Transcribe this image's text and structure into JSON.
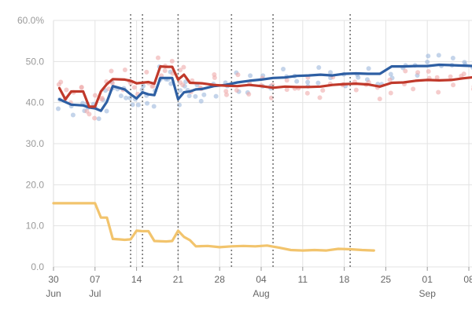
{
  "chart_data": {
    "type": "line",
    "title": "",
    "xlabel": "",
    "ylabel": "",
    "x_range": [
      "2019-06-30",
      "2019-09-08"
    ],
    "ylim": [
      0,
      60
    ],
    "y_ticks": [
      0,
      10,
      20,
      30,
      40,
      50,
      60
    ],
    "y_tick_labels": [
      "0.0",
      "10.0",
      "20.0",
      "30.0",
      "40.0",
      "50.0",
      "60.0%"
    ],
    "x_ticks": [
      {
        "date": "2019-06-30",
        "day": "30",
        "month": "Jun"
      },
      {
        "date": "2019-07-07",
        "day": "07",
        "month": "Jul"
      },
      {
        "date": "2019-07-14",
        "day": "14",
        "month": ""
      },
      {
        "date": "2019-07-21",
        "day": "21",
        "month": ""
      },
      {
        "date": "2019-07-28",
        "day": "28",
        "month": ""
      },
      {
        "date": "2019-08-04",
        "day": "04",
        "month": "Aug"
      },
      {
        "date": "2019-08-11",
        "day": "11",
        "month": ""
      },
      {
        "date": "2019-08-18",
        "day": "18",
        "month": ""
      },
      {
        "date": "2019-08-25",
        "day": "25",
        "month": ""
      },
      {
        "date": "2019-09-01",
        "day": "01",
        "month": "Sep"
      },
      {
        "date": "2019-09-08",
        "day": "08",
        "month": ""
      }
    ],
    "grid": true,
    "event_dates": [
      "2019-07-13",
      "2019-07-15",
      "2019-07-21",
      "2019-07-30",
      "2019-08-06",
      "2019-08-19"
    ],
    "series": [
      {
        "color": "#2e5fa3",
        "dot_color": "#9db8dc",
        "x": [
          "2019-07-01",
          "2019-07-03",
          "2019-07-05",
          "2019-07-06",
          "2019-07-07",
          "2019-07-08",
          "2019-07-09",
          "2019-07-10",
          "2019-07-11",
          "2019-07-12",
          "2019-07-13",
          "2019-07-14",
          "2019-07-15",
          "2019-07-16",
          "2019-07-17",
          "2019-07-18",
          "2019-07-19",
          "2019-07-20",
          "2019-07-21",
          "2019-07-22",
          "2019-07-23",
          "2019-07-24",
          "2019-07-25",
          "2019-07-27",
          "2019-07-29",
          "2019-07-31",
          "2019-08-02",
          "2019-08-04",
          "2019-08-06",
          "2019-08-08",
          "2019-08-10",
          "2019-08-12",
          "2019-08-14",
          "2019-08-16",
          "2019-08-18",
          "2019-08-20",
          "2019-08-22",
          "2019-08-24",
          "2019-08-26",
          "2019-08-28",
          "2019-08-30",
          "2019-09-01",
          "2019-09-03",
          "2019-09-05",
          "2019-09-07",
          "2019-09-09"
        ],
        "values": [
          40.8,
          39.5,
          39.3,
          38.8,
          38.6,
          38.0,
          40.2,
          44.0,
          43.6,
          43.2,
          42.0,
          41.0,
          42.5,
          42.0,
          41.8,
          46.0,
          46.0,
          46.0,
          40.8,
          42.5,
          42.7,
          43.2,
          43.3,
          44.0,
          44.3,
          44.9,
          45.3,
          45.6,
          46.0,
          46.1,
          46.5,
          46.6,
          46.8,
          46.6,
          47.0,
          47.1,
          47.0,
          47.0,
          48.8,
          48.8,
          48.9,
          48.9,
          49.2,
          49.1,
          49.0,
          48.9
        ]
      },
      {
        "color": "#c0392b",
        "dot_color": "#eeaaaa",
        "x": [
          "2019-07-01",
          "2019-07-02",
          "2019-07-03",
          "2019-07-05",
          "2019-07-06",
          "2019-07-07",
          "2019-07-08",
          "2019-07-09",
          "2019-07-10",
          "2019-07-12",
          "2019-07-13",
          "2019-07-14",
          "2019-07-16",
          "2019-07-17",
          "2019-07-18",
          "2019-07-19",
          "2019-07-20",
          "2019-07-21",
          "2019-07-22",
          "2019-07-23",
          "2019-07-25",
          "2019-07-27",
          "2019-07-29",
          "2019-07-31",
          "2019-08-02",
          "2019-08-04",
          "2019-08-06",
          "2019-08-08",
          "2019-08-10",
          "2019-08-12",
          "2019-08-14",
          "2019-08-16",
          "2019-08-18",
          "2019-08-20",
          "2019-08-22",
          "2019-08-24",
          "2019-08-26",
          "2019-08-28",
          "2019-08-30",
          "2019-09-01",
          "2019-09-03",
          "2019-09-05",
          "2019-09-07",
          "2019-09-09"
        ],
        "values": [
          43.5,
          40.8,
          42.7,
          42.7,
          39.0,
          39.0,
          42.7,
          44.5,
          45.7,
          45.6,
          45.3,
          44.7,
          45.0,
          44.6,
          48.8,
          48.7,
          48.7,
          45.6,
          46.8,
          44.8,
          44.7,
          44.3,
          44.1,
          44.0,
          44.3,
          44.0,
          43.6,
          43.9,
          43.8,
          43.8,
          43.9,
          44.3,
          44.5,
          44.6,
          44.4,
          43.9,
          44.8,
          44.9,
          45.3,
          45.5,
          45.4,
          45.5,
          45.9,
          46.2
        ]
      },
      {
        "color": "#f2c46d",
        "x": [
          "2019-06-30",
          "2019-07-07",
          "2019-07-08",
          "2019-07-09",
          "2019-07-10",
          "2019-07-11",
          "2019-07-12",
          "2019-07-13",
          "2019-07-14",
          "2019-07-15",
          "2019-07-16",
          "2019-07-17",
          "2019-07-19",
          "2019-07-20",
          "2019-07-21",
          "2019-07-22",
          "2019-07-23",
          "2019-07-24",
          "2019-07-26",
          "2019-07-28",
          "2019-07-30",
          "2019-08-01",
          "2019-08-03",
          "2019-08-05",
          "2019-08-07",
          "2019-08-09",
          "2019-08-11",
          "2019-08-13",
          "2019-08-15",
          "2019-08-17",
          "2019-08-19",
          "2019-08-21",
          "2019-08-23"
        ],
        "values": [
          15.5,
          15.5,
          12.0,
          12.0,
          6.8,
          6.7,
          6.6,
          6.7,
          8.8,
          8.7,
          8.7,
          6.3,
          6.2,
          6.3,
          8.8,
          7.3,
          6.5,
          5.0,
          5.1,
          4.8,
          5.0,
          5.1,
          5.0,
          5.2,
          4.7,
          4.1,
          4.0,
          4.1,
          4.0,
          4.4,
          4.3,
          4.1,
          4.0
        ]
      }
    ]
  }
}
